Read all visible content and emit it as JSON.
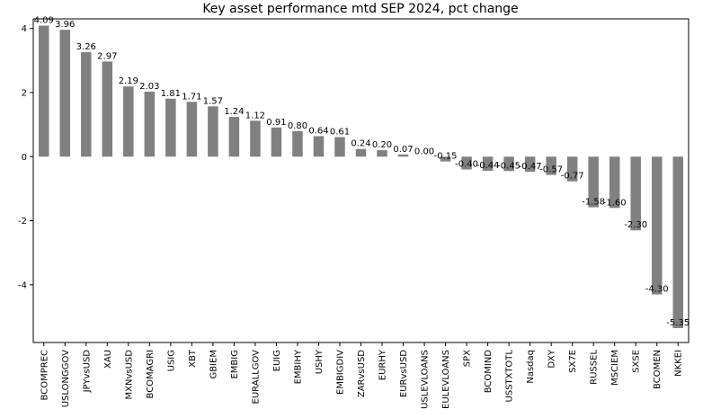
{
  "chart_data": {
    "type": "bar",
    "title": "Key asset performance mtd SEP 2024, pct change",
    "xlabel": "",
    "ylabel": "",
    "ylim": [
      -5.8,
      4.3
    ],
    "yticks": [
      -4,
      -2,
      0,
      2,
      4
    ],
    "grid": false,
    "legend": "none",
    "bar_color": "#808080",
    "categories": [
      "BCOMPREC",
      "USLONGGOV",
      "JPYvsUSD",
      "XAU",
      "MXNvsUSD",
      "BCOMAGRI",
      "USIG",
      "XBT",
      "GBIEM",
      "EMBIG",
      "EURALLGOV",
      "EUIG",
      "EMBIHY",
      "USHY",
      "EMBIGDIV",
      "ZARvsUSD",
      "EURHY",
      "EURvsUSD",
      "USLEVLOANS",
      "EULEVLOANS",
      "SPX",
      "BCOMIND",
      "USSTXTOTL",
      "Nasdaq",
      "DXY",
      "SX7E",
      "RUSSEL",
      "MSCIEM",
      "SXSE",
      "BCOMEN",
      "NKKEI"
    ],
    "values": [
      4.09,
      3.96,
      3.26,
      2.97,
      2.19,
      2.03,
      1.81,
      1.71,
      1.57,
      1.24,
      1.12,
      0.91,
      0.8,
      0.64,
      0.61,
      0.24,
      0.2,
      0.07,
      0.0,
      -0.15,
      -0.4,
      -0.44,
      -0.45,
      -0.47,
      -0.57,
      -0.77,
      -1.58,
      -1.6,
      -2.3,
      -4.3,
      -5.35
    ],
    "data_labels": [
      "4.09",
      "3.96",
      "3.26",
      "2.97",
      "2.19",
      "2.03",
      "1.81",
      "1.71",
      "1.57",
      "1.24",
      "1.12",
      "0.91",
      "0.80",
      "0.64",
      "0.61",
      "0.24",
      "0.20",
      "0.07",
      "0.00",
      "-0.15",
      "-0.40",
      "-0.44",
      "-0.45",
      "-0.47",
      "-0.57",
      "-0.77",
      "-1.58",
      "-1.60",
      "-2.30",
      "-4.30",
      "-5.35"
    ]
  }
}
